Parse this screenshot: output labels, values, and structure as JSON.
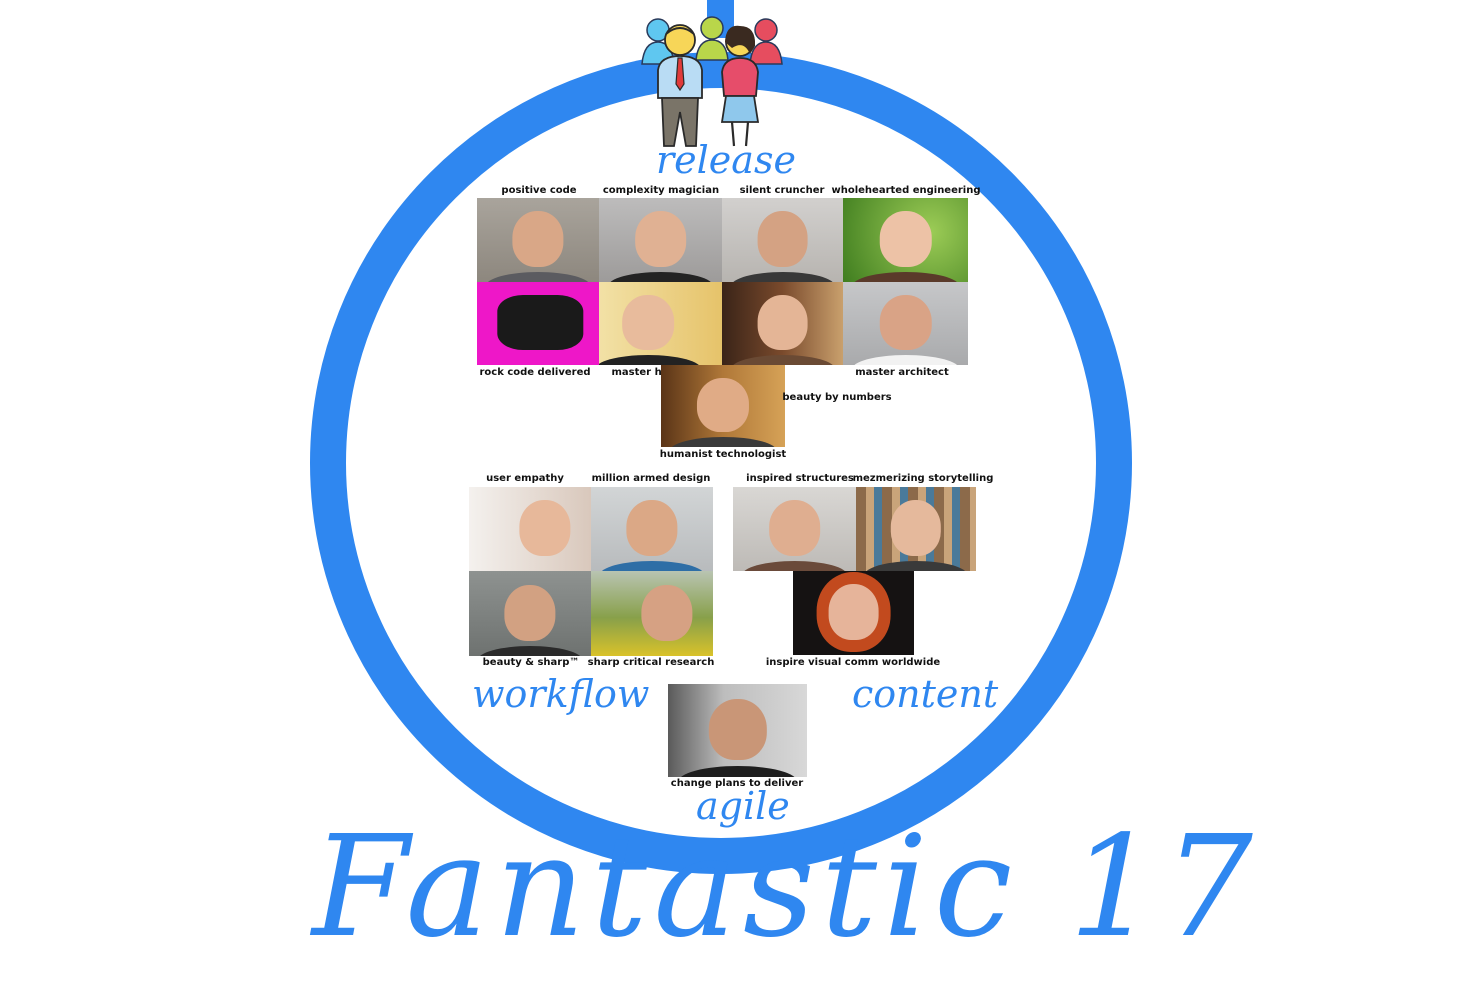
{
  "title": "Fantastic 17",
  "colors": {
    "accent": "#2f87f0",
    "background": "#ffffff",
    "label": "#111111"
  },
  "sections": {
    "release": "release",
    "workflow": "workflow",
    "content": "content",
    "agile": "agile"
  },
  "icon": "two-people-team-icon",
  "members": {
    "release": [
      {
        "label": "positive code"
      },
      {
        "label": "complexity magician"
      },
      {
        "label": "silent cruncher"
      },
      {
        "label": "wholehearted engineering"
      },
      {
        "label": "rock code delivered"
      },
      {
        "label": "master hacker"
      },
      {
        "label": "master architect"
      },
      {
        "label": "beauty by numbers"
      },
      {
        "label": "humanist technologist"
      }
    ],
    "workflow": [
      {
        "label": "user empathy"
      },
      {
        "label": "million armed design"
      },
      {
        "label": "beauty & sharp™"
      },
      {
        "label": "sharp critical research"
      }
    ],
    "content": [
      {
        "label": "inspired structures"
      },
      {
        "label": "mezmerizing storytelling"
      },
      {
        "label": "inspire visual comm worldwide"
      }
    ],
    "agile": [
      {
        "label": "change plans to deliver"
      }
    ]
  }
}
